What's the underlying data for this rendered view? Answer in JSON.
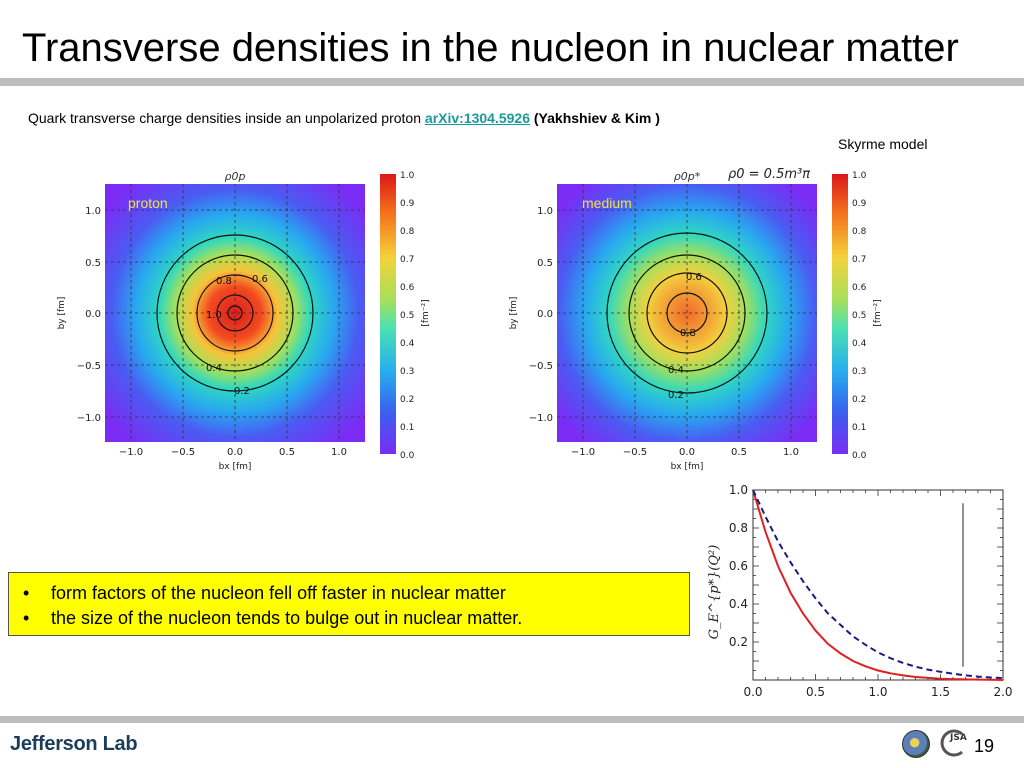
{
  "header": {
    "title": "Transverse densities in the nucleon in nuclear matter"
  },
  "subtitle": {
    "text": "Quark transverse charge densities inside an unpolarized proton",
    "link": "arXiv:1304.5926",
    "authors": "(Yakhshiev & Kim )"
  },
  "model_label": "Skyrme model",
  "panels": [
    {
      "label": "proton",
      "top_label": "ρ0p",
      "contour_labels": [
        "1.0",
        "0.8",
        "0.6",
        "0.4",
        "0.2"
      ],
      "x_label": "bx [fm]",
      "y_label": "by [fm]",
      "colorbar_label": "[fm⁻²]"
    },
    {
      "label": "medium",
      "top_label": "ρ0p*",
      "density_note": "ρ0 = 0.5m³π",
      "contour_labels": [
        "0.8",
        "0.6",
        "0.4",
        "0.2"
      ],
      "x_label": "bx [fm]",
      "y_label": "by [fm]",
      "colorbar_label": "[fm⁻²]"
    }
  ],
  "axis_ticks": [
    "−1.0",
    "−0.5",
    "0.0",
    "0.5",
    "1.0"
  ],
  "colorbar_ticks": [
    "1.0",
    "0.9",
    "0.8",
    "0.7",
    "0.6",
    "0.5",
    "0.4",
    "0.3",
    "0.2",
    "0.1",
    "0.0"
  ],
  "colors": {
    "link": "#1a9a9a",
    "highlight": "#ffff00",
    "panel_label": "#f2e24a",
    "solid_curve": "#e02020",
    "dashed_curve": "#1a1a80"
  },
  "chart_data": {
    "type": "line",
    "ylabel": "G_E^{p*}(Q²)",
    "xlim": [
      0.0,
      2.0
    ],
    "ylim": [
      0.0,
      1.0
    ],
    "x_ticks": [
      "0.0",
      "0.5",
      "1.0",
      "1.5",
      "2.0"
    ],
    "y_ticks": [
      "0.2",
      "0.4",
      "0.6",
      "0.8",
      "1.0"
    ],
    "x": [
      0,
      0.1,
      0.2,
      0.3,
      0.4,
      0.5,
      0.6,
      0.7,
      0.8,
      0.9,
      1.0,
      1.1,
      1.2,
      1.3,
      1.4,
      1.5,
      1.6,
      1.7,
      1.8,
      1.9,
      2.0
    ],
    "series": [
      {
        "style": "solid",
        "color": "#e02020",
        "values": [
          1.0,
          0.78,
          0.6,
          0.46,
          0.35,
          0.26,
          0.19,
          0.14,
          0.1,
          0.072,
          0.05,
          0.035,
          0.024,
          0.016,
          0.011,
          0.007,
          0.005,
          0.003,
          0.002,
          0.001,
          0.0
        ]
      },
      {
        "style": "dashed",
        "color": "#1a1a80",
        "values": [
          1.0,
          0.86,
          0.73,
          0.62,
          0.52,
          0.43,
          0.35,
          0.29,
          0.23,
          0.185,
          0.145,
          0.115,
          0.09,
          0.07,
          0.055,
          0.043,
          0.033,
          0.025,
          0.018,
          0.013,
          0.01
        ]
      }
    ],
    "vline_x": 1.68
  },
  "bullets": [
    "form factors of the nucleon fell off faster in nuclear matter",
    "the size of the nucleon tends to bulge out in nuclear matter."
  ],
  "footer": {
    "logo_text": "Jefferson Lab",
    "jsa_text": "JSA",
    "page_number": "19"
  }
}
